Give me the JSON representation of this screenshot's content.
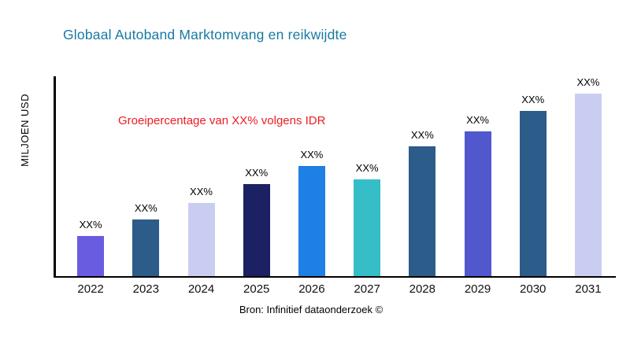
{
  "page": {
    "title": "Globaal Autoband Marktomvang en reikwijdte",
    "annotation": "Groeipercentage van XX% volgens IDR",
    "source": "Bron: Infinitief dataonderzoek ©"
  },
  "colors": {
    "title": "#1879a2",
    "annotation": "#ed1c24",
    "axis": "#000000"
  },
  "chart_data": {
    "type": "bar",
    "title": "Globaal Autoband Marktomvang en reikwijdte",
    "xlabel": "",
    "ylabel": "MILJOEN USD",
    "categories": [
      "2022",
      "2023",
      "2024",
      "2025",
      "2026",
      "2027",
      "2028",
      "2029",
      "2030",
      "2031"
    ],
    "values": [
      22,
      31,
      40,
      50,
      60,
      53,
      71,
      79,
      90,
      100
    ],
    "value_note": "actual values not shown in chart; every bar is labeled XX%; values are relative heights on a 0-100 scale",
    "bar_labels": [
      "XX%",
      "XX%",
      "XX%",
      "XX%",
      "XX%",
      "XX%",
      "XX%",
      "XX%",
      "XX%",
      "XX%"
    ],
    "bar_colors": [
      "#6a5ce0",
      "#2b5c8a",
      "#c9cdf2",
      "#1b2162",
      "#1e7fe4",
      "#36bec8",
      "#2b5c8a",
      "#5158ce",
      "#2b5c8a",
      "#c9cdf2"
    ],
    "ylim": [
      0,
      100
    ],
    "grid": false,
    "legend": false,
    "annotation": "Groeipercentage van XX% volgens IDR",
    "source": "Bron: Infinitief dataonderzoek ©"
  }
}
